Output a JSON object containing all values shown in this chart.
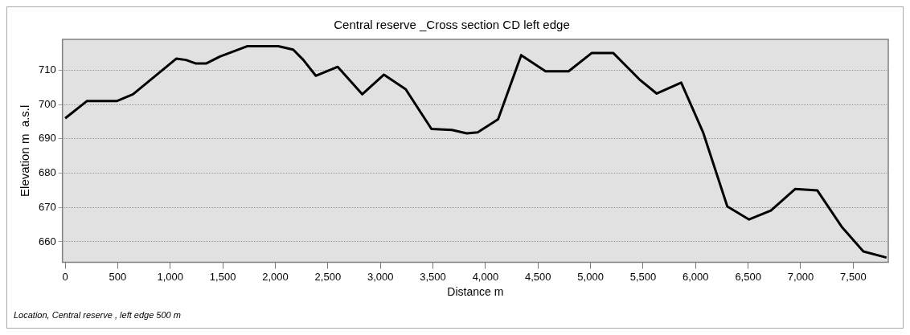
{
  "chart_data": {
    "type": "line",
    "title": "Central reserve _Cross section CD left edge",
    "xlabel": "Distance m",
    "ylabel": "Elevation m  a.s.l",
    "annotations": [
      "Location, Central reserve , left edge 500 m"
    ],
    "x": [
      0,
      206,
      490,
      645,
      1059,
      1150,
      1240,
      1344,
      1473,
      1731,
      2028,
      2170,
      2267,
      2385,
      2594,
      2827,
      3034,
      3240,
      3486,
      3680,
      3822,
      3926,
      4120,
      4340,
      4572,
      4791,
      5010,
      5217,
      5463,
      5630,
      5863,
      6070,
      6302,
      6509,
      6716,
      6949,
      7158,
      7390,
      7597,
      7817
    ],
    "series": [
      {
        "color": "#000000",
        "values": [
          696,
          701,
          701,
          703,
          713.4,
          713,
          712,
          712,
          714,
          717,
          717,
          716,
          713,
          708.4,
          711,
          703,
          708.7,
          704.5,
          692.9,
          692.6,
          691.6,
          691.9,
          695.7,
          714.4,
          709.7,
          709.7,
          715,
          715,
          707.4,
          703.2,
          706.4,
          692,
          670.3,
          666.5,
          669.1,
          675.4,
          675,
          664.4,
          657.2,
          655.4
        ]
      }
    ],
    "xlim": [
      -26,
      7834
    ],
    "ylim": [
      654,
      719
    ],
    "xticks": [
      0,
      500,
      {
        "value": 1000,
        "label": "1,000"
      },
      {
        "value": 1500,
        "label": "1,500"
      },
      {
        "value": 2000,
        "label": "2,000"
      },
      {
        "value": 2500,
        "label": "2,500"
      },
      {
        "value": 3000,
        "label": "3,000"
      },
      {
        "value": 3500,
        "label": "3,500"
      },
      {
        "value": 4000,
        "label": "4,000"
      },
      {
        "value": 4500,
        "label": "4,500"
      },
      {
        "value": 5000,
        "label": "5,000"
      },
      {
        "value": 5500,
        "label": "5,500"
      },
      {
        "value": 6000,
        "label": "6,000"
      },
      {
        "value": 6500,
        "label": "6,500"
      },
      {
        "value": 7000,
        "label": "7,000"
      },
      {
        "value": 7500,
        "label": "7,500"
      }
    ],
    "yticks": [
      660,
      670,
      680,
      690,
      700,
      710
    ],
    "grid": "y",
    "legend": false,
    "marker": "none",
    "line_style": "solid"
  }
}
